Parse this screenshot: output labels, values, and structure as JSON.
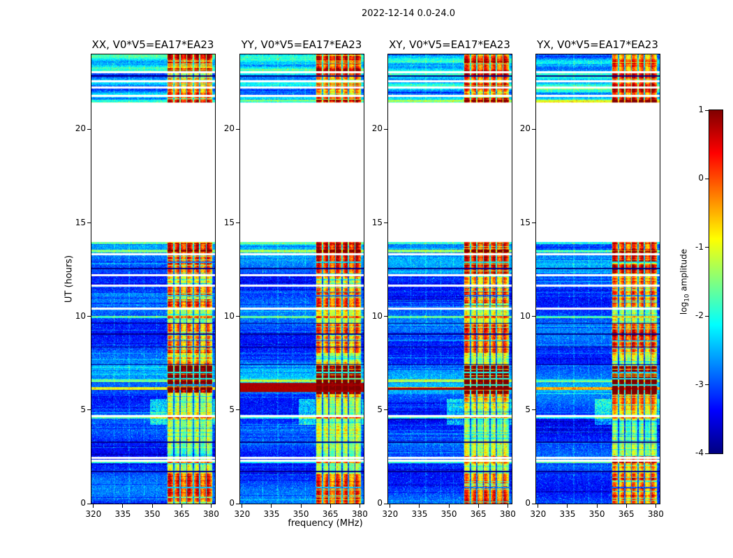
{
  "figure": {
    "title": "2022-12-14 0.0-24.0",
    "xlabel": "frequency (MHz)",
    "ylabel": "UT (hours)",
    "background": "#ffffff",
    "text_color": "#000000"
  },
  "panels": [
    {
      "title": "XX, V0*V5=EA17*EA23"
    },
    {
      "title": "YY, V0*V5=EA17*EA23"
    },
    {
      "title": "XY, V0*V5=EA17*EA23"
    },
    {
      "title": "YX, V0*V5=EA17*EA23"
    }
  ],
  "axes": {
    "x_ticks": [
      320,
      335,
      350,
      365,
      380
    ],
    "y_ticks": [
      0,
      5,
      10,
      15,
      20
    ],
    "x_range": [
      319,
      382
    ],
    "y_range": [
      0,
      24
    ]
  },
  "colorbar": {
    "label": "log10 amplitude",
    "label_prefix": "log",
    "label_sub": "10",
    "label_suffix": " amplitude",
    "ticks": [
      1,
      0,
      -1,
      -2,
      -3,
      -4
    ],
    "range": [
      -4,
      1
    ],
    "colormap": "jet"
  },
  "chart_data": {
    "type": "heatmap",
    "title": "2022-12-14 0.0-24.0",
    "xlabel": "frequency (MHz)",
    "ylabel": "UT (hours)",
    "x_range_mhz": [
      319,
      382
    ],
    "y_range_hours": [
      0,
      24
    ],
    "x_tick_labels": [
      320,
      335,
      350,
      365,
      380
    ],
    "y_tick_labels": [
      0,
      5,
      10,
      15,
      20
    ],
    "panels": [
      "XX, V0*V5=EA17*EA23",
      "YY, V0*V5=EA17*EA23",
      "XY, V0*V5=EA17*EA23",
      "YX, V0*V5=EA17*EA23"
    ],
    "color_scale": {
      "label": "log10 amplitude",
      "min": -4,
      "max": 1,
      "colormap": "jet",
      "tick_labels": [
        1,
        0,
        -1,
        -2,
        -3,
        -4
      ]
    },
    "content": {
      "background_level_log10": -3.2,
      "emission_band_mhz": [
        357.6,
        380.9
      ],
      "band_channel_spacing_mhz": 3.32,
      "band_typical_level_log10": -0.8,
      "strong_burst": {
        "hours": [
          5.85,
          7.38
        ],
        "level_log10": 0.9
      },
      "full_band_red_rows": {
        "YY": [
          5.98,
          6.45
        ],
        "XY": [
          6.06,
          6.2
        ]
      },
      "green_row_hours": [
        6.08,
        6.24
      ],
      "data_gap_hours": [
        13.98,
        21.44
      ],
      "top_segment_hours": [
        21.44,
        24.0
      ],
      "white_line_hours": [
        2.3,
        2.44,
        4.67,
        10.42,
        11.65,
        12.2,
        13.32,
        21.78,
        22.22,
        22.56,
        23.06
      ],
      "dark_line_hours": [
        1.72,
        3.28,
        7.44,
        8.36,
        9.06,
        9.64,
        12.56,
        22.85
      ],
      "bright_row_hours": [
        [
          2.16,
          2.3
        ],
        [
          4.55,
          4.67
        ],
        [
          6.5,
          6.62
        ],
        [
          9.9,
          10.02
        ],
        [
          13.4,
          13.55
        ],
        [
          13.86,
          13.98
        ],
        [
          21.44,
          21.58
        ]
      ],
      "weak_band_hours": [
        [
          2.55,
          4.5
        ],
        [
          9.6,
          10.45
        ]
      ],
      "enhanced_band_hours": [
        [
          0.1,
          1.6
        ],
        [
          8.05,
          9.55
        ],
        [
          10.5,
          11.6
        ],
        [
          12.3,
          13.9
        ]
      ],
      "band_dip_hours": [
        0.85,
        6.32,
        6.68,
        7.02,
        8.7,
        11.1,
        12.9
      ],
      "green_patch": {
        "hours": [
          4.2,
          5.6
        ],
        "mhz": [
          349,
          357.6
        ]
      },
      "faint_rfi_columns_mhz": [
        330.5,
        338.2,
        345.8,
        352.4
      ]
    },
    "render": {
      "seeds": [
        101,
        202,
        303,
        404
      ]
    }
  }
}
